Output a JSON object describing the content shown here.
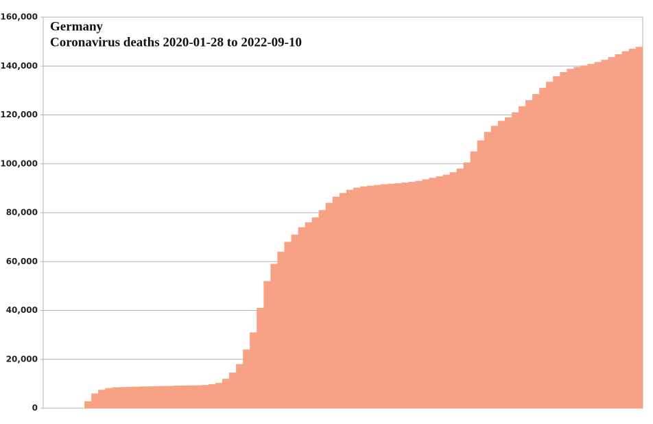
{
  "chart_data": {
    "type": "bar",
    "title": "Germany",
    "subtitle": "Coronavirus deaths 2020-01-28 to 2022-09-10",
    "color": "#f7a185",
    "grid": true,
    "ylim": [
      0,
      160000
    ],
    "yticks": [
      0,
      {
        "value": 20000,
        "label": "20,000"
      },
      {
        "value": 40000,
        "label": "40,000"
      },
      {
        "value": 60000,
        "label": "60,000"
      },
      {
        "value": 80000,
        "label": "80,000"
      },
      {
        "value": 100000,
        "label": "100,000"
      },
      {
        "value": 120000,
        "label": "120,000"
      },
      {
        "value": 140000,
        "label": "140,000"
      },
      {
        "value": 160000,
        "label": "160,000"
      }
    ],
    "categories": [
      null,
      null,
      null,
      null,
      null,
      null,
      null,
      null,
      null,
      null,
      null,
      null,
      null,
      null,
      null,
      null,
      null,
      null,
      null,
      null,
      null,
      null,
      null,
      null,
      null,
      null,
      null,
      null,
      null,
      null,
      null,
      null,
      null,
      null,
      null,
      null,
      null,
      null,
      null,
      null,
      null,
      null,
      null,
      null,
      null,
      null,
      null,
      null,
      null,
      null,
      null,
      null,
      null,
      null,
      null,
      null,
      null,
      null,
      null,
      null,
      null,
      null,
      null,
      null,
      null,
      null,
      null,
      null,
      null,
      null,
      null,
      null,
      null,
      null,
      null,
      null,
      null,
      null,
      null,
      null,
      null,
      null,
      null,
      null,
      null,
      null,
      null
    ],
    "values": [
      0,
      0,
      0,
      0,
      0,
      0,
      2800,
      6000,
      7500,
      8200,
      8500,
      8600,
      8700,
      8800,
      8850,
      8900,
      9000,
      9050,
      9100,
      9200,
      9250,
      9300,
      9350,
      9450,
      9800,
      10300,
      12000,
      14500,
      18000,
      24000,
      31000,
      41000,
      52000,
      59000,
      64000,
      68000,
      71000,
      74000,
      76000,
      78000,
      81000,
      84000,
      86500,
      88000,
      89300,
      90200,
      90700,
      91000,
      91300,
      91600,
      91800,
      92000,
      92300,
      92600,
      93000,
      93600,
      94200,
      94800,
      95500,
      96500,
      98000,
      100500,
      105000,
      109500,
      113000,
      115500,
      117500,
      119000,
      121000,
      123500,
      126000,
      128500,
      131000,
      133500,
      135800,
      137500,
      138800,
      139600,
      140200,
      140800,
      141600,
      142500,
      143600,
      144800,
      146000,
      147000,
      147800
    ]
  }
}
